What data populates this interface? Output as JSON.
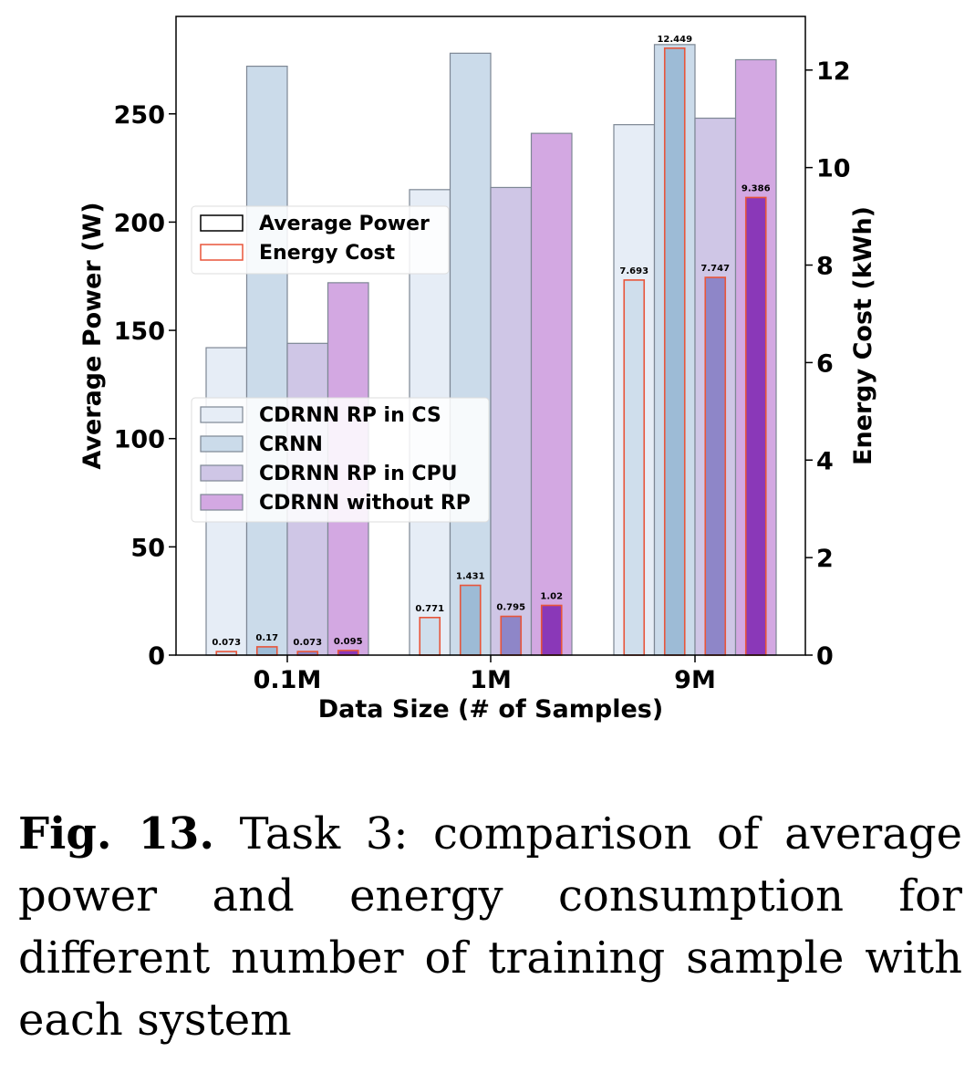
{
  "chart_data": {
    "type": "bar",
    "xlabel": "Data Size (# of Samples)",
    "ylabel": "Average Power (W)",
    "y2label": "Energy Cost (kWh)",
    "categories": [
      "0.1M",
      "1M",
      "9M"
    ],
    "ylim": [
      0,
      295
    ],
    "y2lim": [
      0,
      13.1
    ],
    "yticks": [
      0,
      50,
      100,
      150,
      200,
      250
    ],
    "y2ticks": [
      0,
      2,
      4,
      6,
      8,
      10,
      12
    ],
    "series": [
      {
        "name": "CDRNN RP in CS",
        "color": "#e6edf6",
        "power": [
          142,
          215,
          245
        ],
        "energy": [
          0.073,
          0.771,
          7.693
        ],
        "energy_labels": [
          "0.073",
          "0.771",
          "7.693"
        ],
        "energy_color": "#cfdeec"
      },
      {
        "name": "CRNN",
        "color": "#cbdbea",
        "power": [
          272,
          278,
          282
        ],
        "energy": [
          0.17,
          1.431,
          12.449
        ],
        "energy_labels": [
          "0.17",
          "1.431",
          "12.449"
        ],
        "energy_color": "#9dbbd6"
      },
      {
        "name": "CDRNN RP in CPU",
        "color": "#cfc6e6",
        "power": [
          144,
          216,
          248
        ],
        "energy": [
          0.073,
          0.795,
          7.747
        ],
        "energy_labels": [
          "0.073",
          "0.795",
          "7.747"
        ],
        "energy_color": "#8e86c8"
      },
      {
        "name": "CDRNN without RP",
        "color": "#d3a8e2",
        "power": [
          172,
          241,
          275
        ],
        "energy": [
          0.095,
          1.02,
          9.386
        ],
        "energy_labels": [
          "0.095",
          "1.02",
          "9.386"
        ],
        "energy_color": "#8a38b8"
      }
    ],
    "legend_metric": {
      "placement": "upper-left",
      "entries": [
        "Average Power",
        "Energy Cost"
      ]
    },
    "legend_systems": {
      "placement": "center-left",
      "entries": [
        "CDRNN RP in CS",
        "CRNN",
        "CDRNN RP in CPU",
        "CDRNN without RP"
      ]
    },
    "energy_border_color": "#e8553a",
    "grid": false
  },
  "caption": {
    "label": "Fig. 13.",
    "text": "Task 3: comparison of average power and energy consumption for different number of training sample with each system"
  }
}
